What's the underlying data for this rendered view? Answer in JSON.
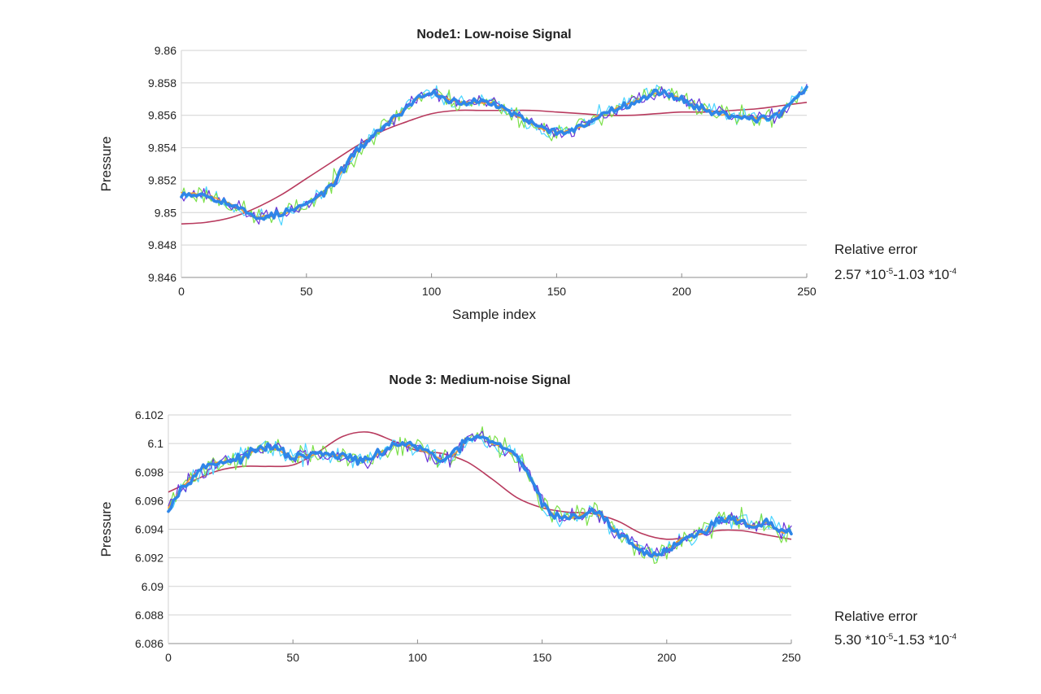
{
  "chart_data": [
    {
      "type": "line",
      "title": "Node1: Low-noise Signal",
      "xlabel": "Sample index",
      "ylabel": "Pressure",
      "xlim": [
        0,
        250
      ],
      "ylim": [
        9.846,
        9.86
      ],
      "xticks": [
        "0",
        "50",
        "100",
        "150",
        "200",
        "250"
      ],
      "yticks": [
        "9.846",
        "9.848",
        "9.85",
        "9.852",
        "9.854",
        "9.856",
        "9.858",
        "9.86"
      ],
      "grid": true,
      "legend": "none",
      "annotation": {
        "label": "Relative error",
        "value_parts": [
          "2.57 *10",
          "-5",
          "-1.03 *10",
          "-4"
        ]
      },
      "trend": {
        "x": [
          0,
          10,
          20,
          30,
          40,
          50,
          55,
          60,
          65,
          70,
          75,
          80,
          85,
          90,
          95,
          100,
          105,
          110,
          115,
          120,
          125,
          130,
          135,
          140,
          145,
          150,
          155,
          160,
          165,
          170,
          175,
          180,
          185,
          190,
          195,
          200,
          205,
          210,
          215,
          220,
          225,
          230,
          235,
          240,
          245,
          250
        ],
        "y": [
          9.8512,
          9.8511,
          9.8505,
          9.8497,
          9.8499,
          9.8505,
          9.851,
          9.8517,
          9.8527,
          9.8538,
          9.8545,
          9.8552,
          9.8558,
          9.8565,
          9.8571,
          9.8574,
          9.8571,
          9.8568,
          9.8568,
          9.8568,
          9.8567,
          9.8563,
          9.8559,
          9.8555,
          9.8551,
          9.855,
          9.855,
          9.8553,
          9.8558,
          9.8562,
          9.8565,
          9.8568,
          9.8571,
          9.8574,
          9.8573,
          9.857,
          9.8566,
          9.8563,
          9.8561,
          9.856,
          9.8559,
          9.8558,
          9.8558,
          9.8562,
          9.857,
          9.8577
        ]
      },
      "series": [
        {
          "name": "",
          "color": "#4ad4ff",
          "noise": 0.00035,
          "width": 1.2,
          "seed": 11
        },
        {
          "name": "",
          "color": "#7ce04a",
          "noise": 0.00042,
          "width": 1.2,
          "seed": 23
        },
        {
          "name": "",
          "color": "#6a35d9",
          "noise": 0.0003,
          "width": 1.2,
          "seed": 37
        },
        {
          "name": "",
          "color": "#f0a030",
          "noise": 5e-05,
          "width": 1.6,
          "seed": 41
        },
        {
          "name": "",
          "color": "#2f86e8",
          "noise": 0.00016,
          "width": 3.6,
          "seed": 53
        },
        {
          "name": "",
          "color": "#b83a5e",
          "width": 1.6,
          "x": [
            0,
            10,
            20,
            30,
            40,
            50,
            60,
            70,
            80,
            90,
            100,
            110,
            120,
            130,
            140,
            150,
            160,
            170,
            180,
            190,
            200,
            210,
            220,
            230,
            240,
            250
          ],
          "y": [
            9.8493,
            9.8494,
            9.8497,
            9.8503,
            9.8511,
            9.8521,
            9.8531,
            9.8541,
            9.855,
            9.8556,
            9.8561,
            9.8563,
            9.8563,
            9.8563,
            9.8563,
            9.8562,
            9.8561,
            9.856,
            9.856,
            9.8561,
            9.8562,
            9.8562,
            9.8563,
            9.8564,
            9.8566,
            9.8568
          ]
        }
      ]
    },
    {
      "type": "line",
      "title": "Node 3: Medium-noise Signal",
      "xlabel": "",
      "ylabel": "Pressure",
      "xlim": [
        0,
        250
      ],
      "ylim": [
        6.086,
        6.102
      ],
      "xticks": [
        "0",
        "50",
        "100",
        "150",
        "200",
        "250"
      ],
      "yticks": [
        "6.086",
        "6.088",
        "6.09",
        "6.092",
        "6.094",
        "6.096",
        "6.098",
        "6.1",
        "6.102"
      ],
      "grid": true,
      "legend": "none",
      "annotation": {
        "label": "Relative error",
        "value_parts": [
          "5.30 *10",
          "-5",
          "-1.53 *10",
          "-4"
        ]
      },
      "trend": {
        "x": [
          0,
          5,
          10,
          15,
          20,
          25,
          30,
          35,
          40,
          45,
          50,
          55,
          60,
          65,
          70,
          75,
          80,
          85,
          90,
          95,
          100,
          105,
          110,
          115,
          120,
          125,
          130,
          135,
          140,
          145,
          150,
          155,
          160,
          165,
          170,
          175,
          180,
          185,
          190,
          195,
          200,
          205,
          210,
          215,
          220,
          225,
          230,
          235,
          240,
          245,
          250
        ],
        "y": [
          6.0955,
          6.0968,
          6.0978,
          6.0984,
          6.0987,
          6.0988,
          6.099,
          6.0995,
          6.0998,
          6.0995,
          6.099,
          6.0991,
          6.0993,
          6.0992,
          6.0991,
          6.0989,
          6.0988,
          6.0993,
          6.0999,
          6.1,
          6.0997,
          6.0993,
          6.0988,
          6.0993,
          6.1003,
          6.1005,
          6.1,
          6.0997,
          6.099,
          6.0978,
          6.0958,
          6.095,
          6.0948,
          6.0949,
          6.0953,
          6.0948,
          6.0937,
          6.0932,
          6.0925,
          6.0921,
          6.0925,
          6.0932,
          6.0935,
          6.0938,
          6.0946,
          6.0948,
          6.0945,
          6.0942,
          6.0945,
          6.0938,
          6.0938
        ]
      },
      "series": [
        {
          "name": "",
          "color": "#4ad4ff",
          "noise": 0.00048,
          "width": 1.2,
          "seed": 67
        },
        {
          "name": "",
          "color": "#7ce04a",
          "noise": 0.00052,
          "width": 1.2,
          "seed": 71
        },
        {
          "name": "",
          "color": "#6a35d9",
          "noise": 0.0004,
          "width": 1.2,
          "seed": 83
        },
        {
          "name": "",
          "color": "#f0a030",
          "noise": 6e-05,
          "width": 1.6,
          "seed": 89
        },
        {
          "name": "",
          "color": "#2f86e8",
          "noise": 0.0002,
          "width": 3.6,
          "seed": 97
        },
        {
          "name": "",
          "color": "#b83a5e",
          "width": 1.6,
          "x": [
            0,
            10,
            20,
            30,
            40,
            50,
            60,
            70,
            80,
            90,
            100,
            110,
            120,
            130,
            140,
            150,
            160,
            170,
            180,
            190,
            200,
            210,
            220,
            230,
            240,
            250
          ],
          "y": [
            6.0966,
            6.0974,
            6.0981,
            6.0984,
            6.0984,
            6.0985,
            6.0994,
            6.1005,
            6.1008,
            6.1002,
            6.0995,
            6.0993,
            6.0987,
            6.0975,
            6.0962,
            6.0955,
            6.0952,
            6.0951,
            6.0946,
            6.0937,
            6.0933,
            6.0935,
            6.0939,
            6.0939,
            6.0936,
            6.0933
          ]
        }
      ]
    }
  ]
}
